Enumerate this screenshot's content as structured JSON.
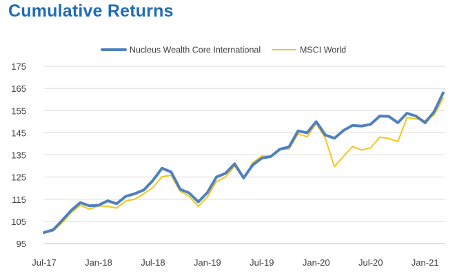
{
  "page": {
    "title": "Cumulative Returns"
  },
  "colors": {
    "title": "#1f6cb5",
    "nucleus": "#4f81bd",
    "msci": "#f5c518",
    "grid": "#d9d9d9",
    "axis_text": "#404040"
  },
  "chart_data": {
    "type": "line",
    "title": "",
    "xlabel": "",
    "ylabel": "",
    "ylim": [
      95,
      175
    ],
    "y_ticks": [
      "95",
      "105",
      "115",
      "125",
      "135",
      "145",
      "155",
      "165",
      "175"
    ],
    "x_tick_labels": [
      "Jul-17",
      "Jan-18",
      "Jul-18",
      "Jan-19",
      "Jul-19",
      "Jan-20",
      "Jul-20",
      "Jan-21"
    ],
    "grid": "horizontal",
    "legend": "top-center",
    "x": [
      "Jul-17",
      "Aug-17",
      "Sep-17",
      "Oct-17",
      "Nov-17",
      "Dec-17",
      "Jan-18",
      "Feb-18",
      "Mar-18",
      "Apr-18",
      "May-18",
      "Jun-18",
      "Jul-18",
      "Aug-18",
      "Sep-18",
      "Oct-18",
      "Nov-18",
      "Dec-18",
      "Jan-19",
      "Feb-19",
      "Mar-19",
      "Apr-19",
      "May-19",
      "Jun-19",
      "Jul-19",
      "Aug-19",
      "Sep-19",
      "Oct-19",
      "Nov-19",
      "Dec-19",
      "Jan-20",
      "Feb-20",
      "Mar-20",
      "Apr-20",
      "May-20",
      "Jun-20",
      "Jul-20",
      "Aug-20",
      "Sep-20",
      "Oct-20",
      "Nov-20",
      "Dec-20",
      "Jan-21",
      "Feb-21",
      "Mar-21"
    ],
    "series": [
      {
        "name": "Nucleus Wealth Core International",
        "color": "#4f81bd",
        "values": [
          100,
          101.2,
          105.5,
          110,
          113.5,
          112,
          112.3,
          114.3,
          113,
          116.3,
          117.5,
          119.2,
          123.5,
          129,
          127.3,
          119.5,
          117.8,
          113.8,
          118,
          125,
          126.7,
          131,
          124.6,
          130.5,
          133.5,
          134.3,
          137.6,
          138.6,
          145.8,
          145,
          150,
          144,
          142.5,
          146,
          148.3,
          148,
          148.8,
          152.5,
          152.4,
          149.5,
          153.8,
          152.5,
          149.5,
          154.5,
          163
        ]
      },
      {
        "name": "MSCI World",
        "color": "#f5c518",
        "values": [
          99.8,
          100.7,
          104.5,
          109,
          112.3,
          110.5,
          112,
          111.8,
          111,
          114.2,
          115,
          117.5,
          120.3,
          125.2,
          125.8,
          118.6,
          116.3,
          111.8,
          116,
          123,
          125,
          130,
          124.3,
          131.5,
          134.5,
          134.3,
          137.5,
          137.6,
          144.5,
          143.2,
          149.3,
          142.5,
          129.7,
          134.3,
          138.8,
          137.2,
          138.2,
          143,
          142.4,
          141,
          151.8,
          151.3,
          150.5,
          153,
          160.5
        ]
      }
    ]
  }
}
